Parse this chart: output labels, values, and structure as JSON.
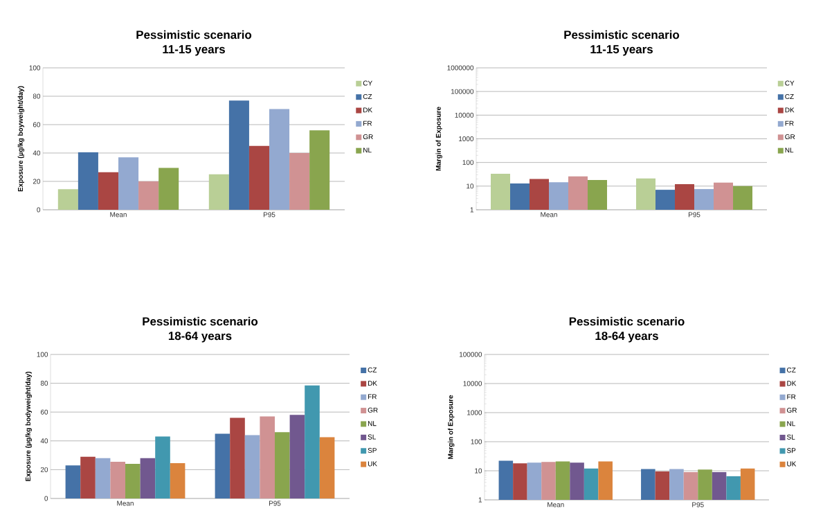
{
  "chart_data": [
    {
      "type": "bar",
      "title": "Pessimistic scenario",
      "subtitle": "11-15  years",
      "ylabel": "Exposure (µg/kg boyweight/day)",
      "categories": [
        "Mean",
        "P95"
      ],
      "ylim": [
        0,
        100
      ],
      "yticks": [
        0,
        20,
        40,
        60,
        80,
        100
      ],
      "grid": "y",
      "legend": "right",
      "series": [
        {
          "name": "CY",
          "color": "#b9cf96",
          "values": [
            14.5,
            25
          ]
        },
        {
          "name": "CZ",
          "color": "#4572a7",
          "values": [
            40.5,
            77
          ]
        },
        {
          "name": "DK",
          "color": "#aa4643",
          "values": [
            26.5,
            45
          ]
        },
        {
          "name": "FR",
          "color": "#93a9d0",
          "values": [
            37,
            71
          ]
        },
        {
          "name": "GR",
          "color": "#d09293",
          "values": [
            20,
            40
          ]
        },
        {
          "name": "NL",
          "color": "#89a54e",
          "values": [
            29.5,
            56
          ]
        }
      ]
    },
    {
      "type": "bar",
      "title": "Pessimistic scenario",
      "subtitle": "11-15  years",
      "ylabel": "Margin of Exposure",
      "categories": [
        "Mean",
        "P95"
      ],
      "ylim": [
        1,
        1000000
      ],
      "yticks": [
        1,
        10,
        100,
        1000,
        10000,
        100000,
        1000000
      ],
      "log": true,
      "grid": "y",
      "legend": "right",
      "series": [
        {
          "name": "CY",
          "color": "#b9cf96",
          "values": [
            33,
            21
          ]
        },
        {
          "name": "CZ",
          "color": "#4572a7",
          "values": [
            13,
            7
          ]
        },
        {
          "name": "DK",
          "color": "#aa4643",
          "values": [
            20,
            12
          ]
        },
        {
          "name": "FR",
          "color": "#93a9d0",
          "values": [
            14.5,
            7.5
          ]
        },
        {
          "name": "GR",
          "color": "#d09293",
          "values": [
            26,
            14
          ]
        },
        {
          "name": "NL",
          "color": "#89a54e",
          "values": [
            18,
            10
          ]
        }
      ]
    },
    {
      "type": "bar",
      "title": "Pessimistic scenario",
      "subtitle": "18-64 years",
      "ylabel": "Exposure (µg/kg bodyweight/day)",
      "categories": [
        "Mean",
        "P95"
      ],
      "ylim": [
        0,
        100
      ],
      "yticks": [
        0,
        20,
        40,
        60,
        80,
        100
      ],
      "grid": "y",
      "legend": "right",
      "series": [
        {
          "name": "CZ",
          "color": "#4572a7",
          "values": [
            23,
            45
          ]
        },
        {
          "name": "DK",
          "color": "#aa4643",
          "values": [
            29,
            56
          ]
        },
        {
          "name": "FR",
          "color": "#93a9d0",
          "values": [
            28,
            44
          ]
        },
        {
          "name": "GR",
          "color": "#d09293",
          "values": [
            25.5,
            57
          ]
        },
        {
          "name": "NL",
          "color": "#89a54e",
          "values": [
            24,
            46
          ]
        },
        {
          "name": "SL",
          "color": "#71588f",
          "values": [
            28,
            58
          ]
        },
        {
          "name": "SP",
          "color": "#4198af",
          "values": [
            43,
            78.5
          ]
        },
        {
          "name": "UK",
          "color": "#db843d",
          "values": [
            24.5,
            42.5
          ]
        }
      ]
    },
    {
      "type": "bar",
      "title": "Pessimistic scenario",
      "subtitle": "18-64 years",
      "ylabel": "Margin of Exposure",
      "categories": [
        "Mean",
        "P95"
      ],
      "ylim": [
        1,
        100000
      ],
      "yticks": [
        1,
        10,
        100,
        1000,
        10000,
        100000
      ],
      "log": true,
      "grid": "y",
      "legend": "right",
      "series": [
        {
          "name": "CZ",
          "color": "#4572a7",
          "values": [
            22,
            11.5
          ]
        },
        {
          "name": "DK",
          "color": "#aa4643",
          "values": [
            18,
            9.5
          ]
        },
        {
          "name": "FR",
          "color": "#93a9d0",
          "values": [
            19,
            11.5
          ]
        },
        {
          "name": "GR",
          "color": "#d09293",
          "values": [
            20,
            9
          ]
        },
        {
          "name": "NL",
          "color": "#89a54e",
          "values": [
            21,
            11
          ]
        },
        {
          "name": "SL",
          "color": "#71588f",
          "values": [
            19,
            9
          ]
        },
        {
          "name": "SP",
          "color": "#4198af",
          "values": [
            12,
            6.5
          ]
        },
        {
          "name": "UK",
          "color": "#db843d",
          "values": [
            21,
            12
          ]
        }
      ]
    }
  ]
}
